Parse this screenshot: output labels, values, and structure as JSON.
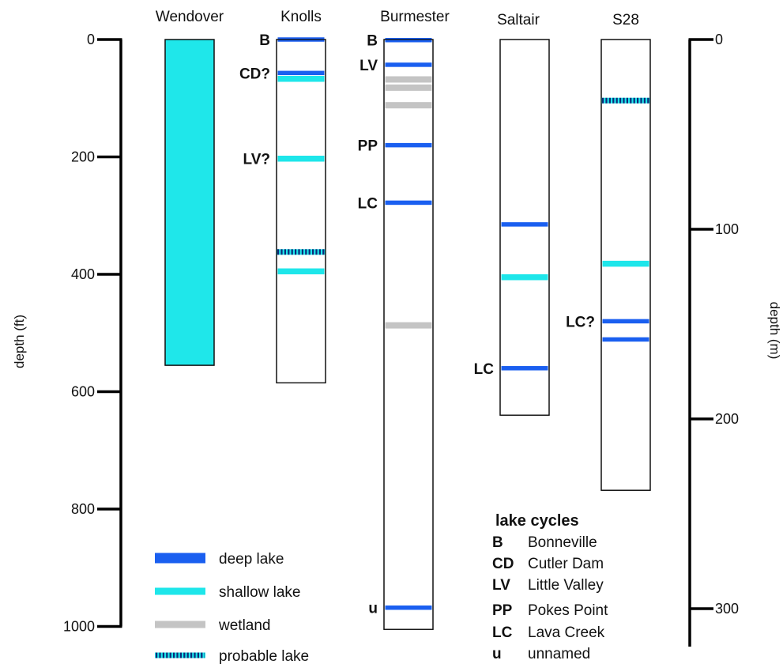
{
  "colors": {
    "deep": "#1a5ff0",
    "shallow": "#1ee6ea",
    "wetland": "#c4c4c4",
    "probable_dots": "#0b2a7a",
    "probable_base": "#1ee6ea",
    "wendover_fill": "#1fe7ea",
    "axis": "#000000",
    "text": "#111111"
  },
  "axes": {
    "left": {
      "label": "depth (ft)",
      "unit": "ft",
      "range": [
        0,
        1000
      ],
      "ticks": [
        "0",
        "200",
        "400",
        "600",
        "800",
        "1000"
      ]
    },
    "right": {
      "label": "depth (m)",
      "unit": "m",
      "range": [
        0,
        320
      ],
      "ticks": [
        "0",
        "100",
        "200",
        "300"
      ]
    }
  },
  "cores": [
    {
      "name": "Wendover",
      "total_depth_ft": 555,
      "fill": "shallow-solid",
      "bands": []
    },
    {
      "name": "Knolls",
      "total_depth_ft": 585,
      "bands": [
        {
          "depth_ft": 0,
          "type": "deep",
          "label": "B"
        },
        {
          "depth_ft": 57,
          "type": "deep",
          "label": "CD?"
        },
        {
          "depth_ft": 67,
          "type": "shallow",
          "label": ""
        },
        {
          "depth_ft": 203,
          "type": "shallow",
          "label": "LV?"
        },
        {
          "depth_ft": 362,
          "type": "probable",
          "label": ""
        },
        {
          "depth_ft": 395,
          "type": "shallow",
          "label": ""
        }
      ]
    },
    {
      "name": "Burmester",
      "total_depth_ft": 1005,
      "bands": [
        {
          "depth_ft": 1,
          "type": "deep",
          "label": "B"
        },
        {
          "depth_ft": 43,
          "type": "deep",
          "label": "LV"
        },
        {
          "depth_ft": 68,
          "type": "wetland",
          "label": ""
        },
        {
          "depth_ft": 82,
          "type": "wetland",
          "label": ""
        },
        {
          "depth_ft": 112,
          "type": "wetland",
          "label": ""
        },
        {
          "depth_ft": 180,
          "type": "deep",
          "label": "PP"
        },
        {
          "depth_ft": 278,
          "type": "deep",
          "label": "LC"
        },
        {
          "depth_ft": 487,
          "type": "wetland",
          "label": ""
        },
        {
          "depth_ft": 968,
          "type": "deep",
          "label": "u"
        }
      ]
    },
    {
      "name": "Saltair",
      "total_depth_ft": 640,
      "bands": [
        {
          "depth_ft": 315,
          "type": "deep",
          "label": ""
        },
        {
          "depth_ft": 405,
          "type": "shallow",
          "label": ""
        },
        {
          "depth_ft": 560,
          "type": "deep",
          "label": "LC"
        }
      ]
    },
    {
      "name": "S28",
      "total_depth_ft": 768,
      "bands": [
        {
          "depth_ft": 104,
          "type": "probable",
          "label": ""
        },
        {
          "depth_ft": 382,
          "type": "shallow",
          "label": ""
        },
        {
          "depth_ft": 480,
          "type": "deep",
          "label": "LC?"
        },
        {
          "depth_ft": 511,
          "type": "deep",
          "label": ""
        }
      ]
    }
  ],
  "legend": [
    {
      "type": "deep",
      "label": "deep lake"
    },
    {
      "type": "shallow",
      "label": "shallow lake"
    },
    {
      "type": "wetland",
      "label": "wetland"
    },
    {
      "type": "probable",
      "label": "probable lake"
    }
  ],
  "lake_cycles": {
    "title": "lake cycles",
    "items": [
      {
        "abbr": "B",
        "name": "Bonneville"
      },
      {
        "abbr": "CD",
        "name": "Cutler Dam"
      },
      {
        "abbr": "LV",
        "name": "Little Valley"
      },
      {
        "abbr": "PP",
        "name": "Pokes Point"
      },
      {
        "abbr": "LC",
        "name": "Lava Creek"
      },
      {
        "abbr": "u",
        "name": "unnamed"
      }
    ]
  }
}
